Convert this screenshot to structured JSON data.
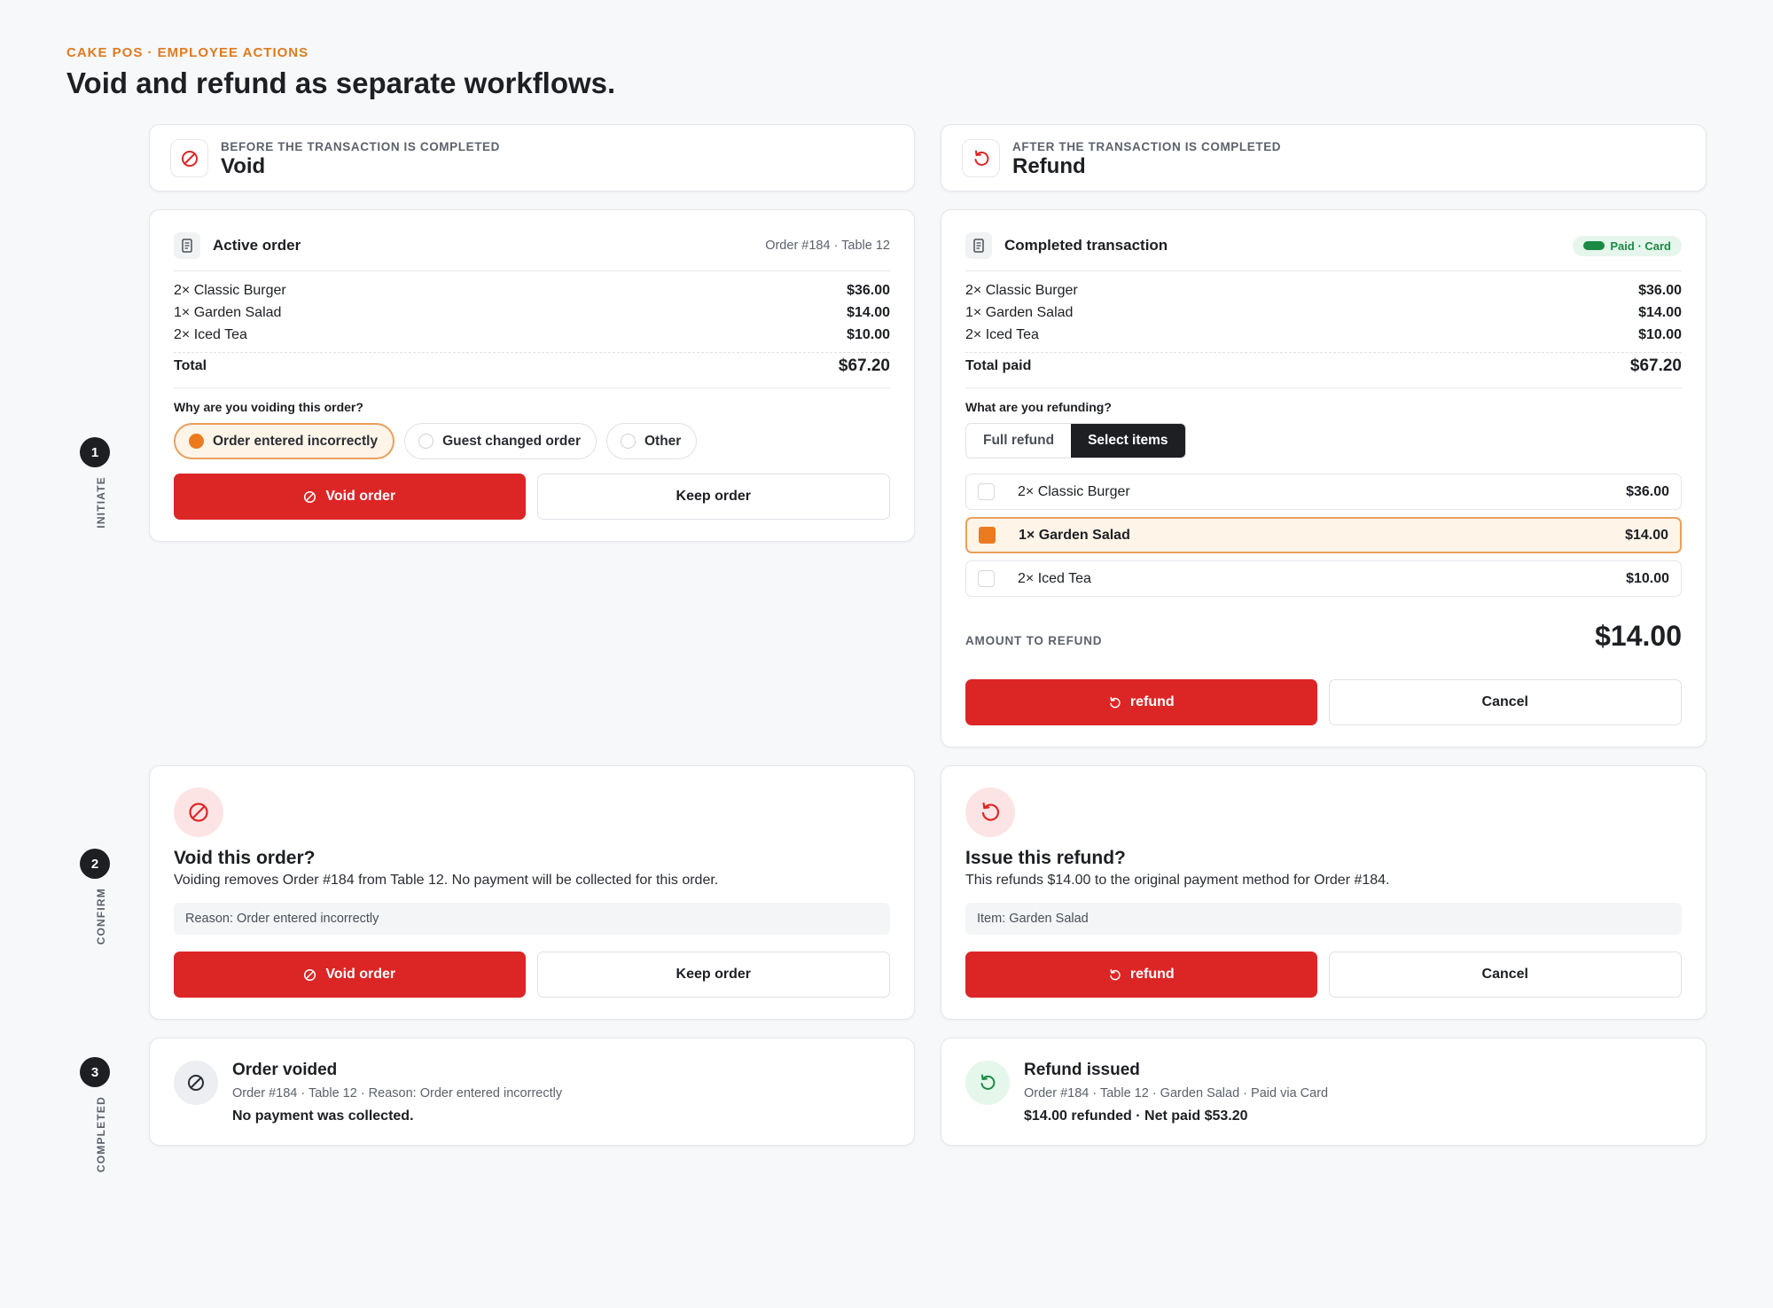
{
  "header": {
    "eyebrow": "CAKE POS · EMPLOYEE ACTIONS",
    "title": "Void and refund as separate workflows."
  },
  "steps": [
    {
      "num": "1",
      "label": "INITIATE"
    },
    {
      "num": "2",
      "label": "CONFIRM"
    },
    {
      "num": "3",
      "label": "COMPLETED"
    }
  ],
  "void": {
    "subtitle": "BEFORE THE TRANSACTION IS COMPLETED",
    "title": "Void",
    "order": {
      "title": "Active order",
      "meta": "Order #184 · Table 12",
      "items": [
        {
          "name": "2× Classic Burger",
          "amount": "$36.00"
        },
        {
          "name": "1× Garden Salad",
          "amount": "$14.00"
        },
        {
          "name": "2× Iced Tea",
          "amount": "$10.00"
        }
      ],
      "total_label": "Total",
      "total_value": "$67.20"
    },
    "question": "Why are you voiding this order?",
    "reasons": [
      {
        "label": "Order entered incorrectly",
        "selected": true
      },
      {
        "label": "Guest changed order",
        "selected": false
      },
      {
        "label": "Other",
        "selected": false
      }
    ],
    "primary_label": "Void order",
    "secondary_label": "Keep order",
    "confirm": {
      "title": "Void this order?",
      "description": "Voiding removes Order #184 from Table 12. No payment will be collected for this order.",
      "note": "Reason: Order entered incorrectly",
      "primary_label": "Void order",
      "secondary_label": "Keep order"
    },
    "done": {
      "title": "Order voided",
      "meta": "Order #184 · Table 12 · Reason: Order entered incorrectly",
      "result": "No payment was collected."
    }
  },
  "refund": {
    "subtitle": "AFTER THE TRANSACTION IS COMPLETED",
    "title": "Refund",
    "order": {
      "title": "Completed transaction",
      "badge": "Paid · Card",
      "items": [
        {
          "name": "2× Classic Burger",
          "amount": "$36.00"
        },
        {
          "name": "1× Garden Salad",
          "amount": "$14.00"
        },
        {
          "name": "2× Iced Tea",
          "amount": "$10.00"
        }
      ],
      "total_label": "Total paid",
      "total_value": "$67.20"
    },
    "question": "What are you refunding?",
    "modes": [
      {
        "label": "Full refund",
        "active": false
      },
      {
        "label": "Select items",
        "active": true
      }
    ],
    "selectable_items": [
      {
        "name": "2× Classic Burger",
        "amount": "$36.00",
        "selected": false
      },
      {
        "name": "1× Garden Salad",
        "amount": "$14.00",
        "selected": true
      },
      {
        "name": "2× Iced Tea",
        "amount": "$10.00",
        "selected": false
      }
    ],
    "amount_label": "AMOUNT TO REFUND",
    "amount_value": "$14.00",
    "primary_label": "refund",
    "secondary_label": "Cancel",
    "confirm": {
      "title": "Issue this refund?",
      "description": "This refunds $14.00 to the original payment method for Order #184.",
      "note": "Item: Garden Salad",
      "primary_label": "refund",
      "secondary_label": "Cancel"
    },
    "done": {
      "title": "Refund issued",
      "meta": "Order #184 · Table 12 · Garden Salad · Paid via Card",
      "result": "$14.00 refunded · Net paid $53.20"
    }
  },
  "colors": {
    "accent": "#dc2626",
    "selection": "#ec7a1f",
    "eyebrow": "#e07a1e",
    "paid_badge": "#1a8a45"
  }
}
